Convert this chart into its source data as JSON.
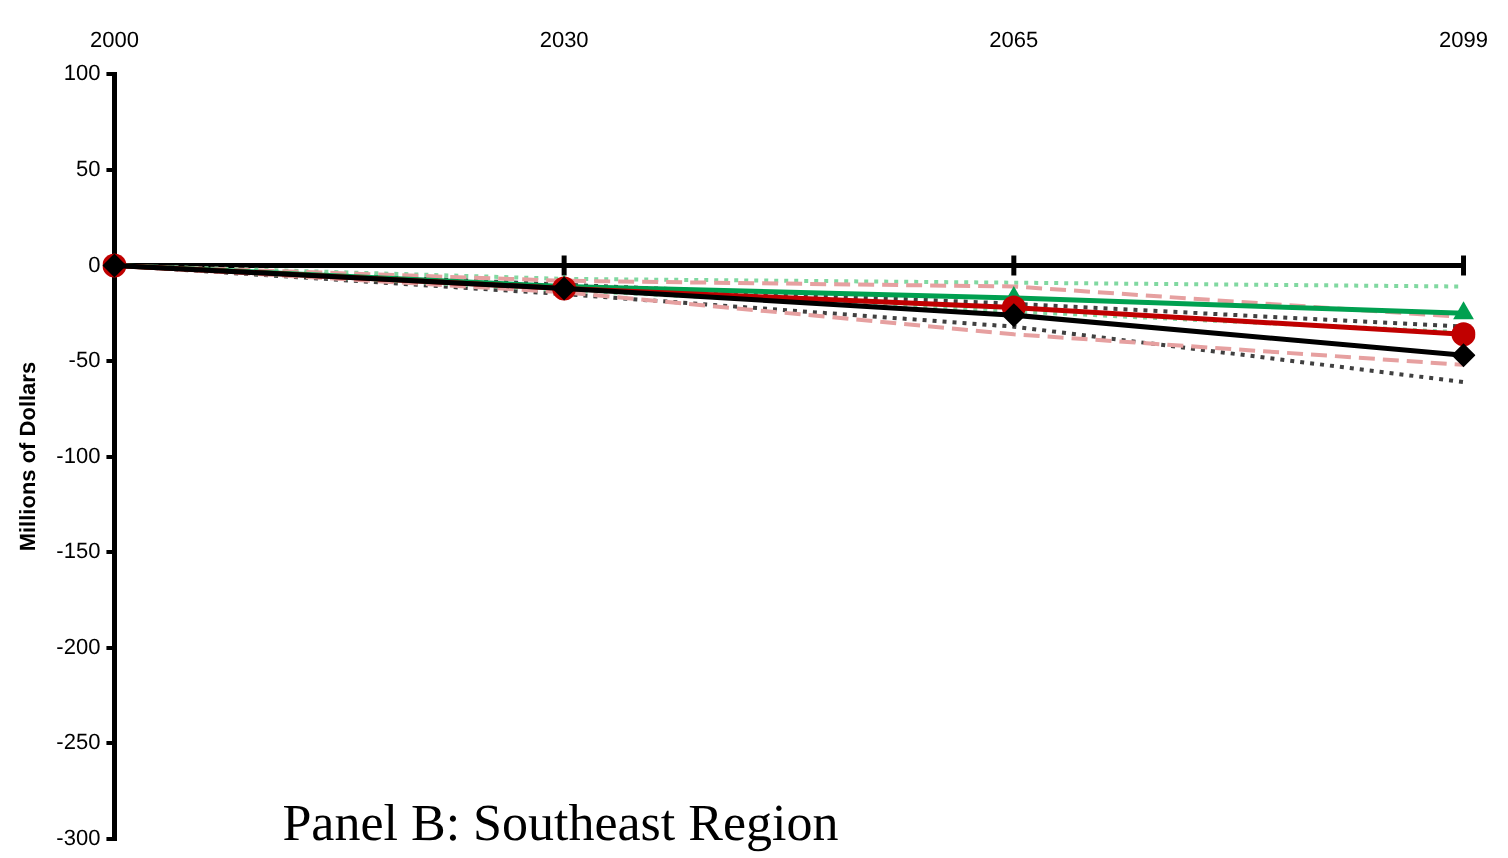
{
  "chart_data": {
    "type": "line",
    "title": "Panel B: Southeast Region",
    "ylabel": "Millions of Dollars",
    "categories": [
      "2000",
      "2030",
      "2065",
      "2099"
    ],
    "series": [
      {
        "color": "#000000",
        "values": [
          0,
          -12,
          -26,
          -47
        ],
        "marker": "diamond",
        "line_style": "solid"
      },
      {
        "color": "#c00000",
        "values": [
          0,
          -12,
          -22,
          -36
        ],
        "marker": "circle",
        "line_style": "solid"
      },
      {
        "color": "#00a050",
        "values": [
          0,
          -11,
          -17,
          -25
        ],
        "marker": "triangle",
        "line_style": "solid"
      },
      {
        "color": "#e6a0a0",
        "values": [
          0,
          -8,
          -11,
          -27
        ],
        "marker": "none",
        "line_style": "dashed"
      },
      {
        "color": "#e6a0a0",
        "values": [
          0,
          -14,
          -36,
          -52
        ],
        "marker": "none",
        "line_style": "dashed"
      },
      {
        "color": "#80d8a0",
        "values": [
          0,
          -7,
          -9,
          -11
        ],
        "marker": "none",
        "line_style": "dotted"
      },
      {
        "color": "#80d8a0",
        "values": [
          0,
          -13,
          -24,
          -35
        ],
        "marker": "none",
        "line_style": "dotted"
      },
      {
        "color": "#404040",
        "values": [
          0,
          -10,
          -20,
          -32
        ],
        "marker": "none",
        "line_style": "dotted"
      },
      {
        "color": "#404040",
        "values": [
          0,
          -15,
          -32,
          -61
        ],
        "marker": "none",
        "line_style": "dotted"
      }
    ],
    "ylim": [
      -300,
      100
    ],
    "yticks": [
      -300,
      -250,
      -200,
      -150,
      -100,
      -50,
      0,
      50,
      100
    ],
    "ref_lines": [
      {
        "axis": "y",
        "value": 0,
        "color": "#000000"
      }
    ],
    "grid": false,
    "legend": false
  }
}
